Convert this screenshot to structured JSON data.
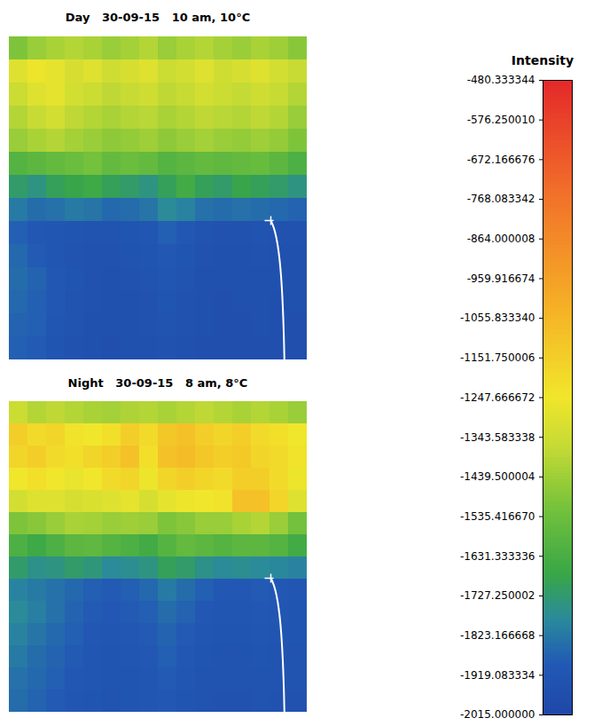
{
  "chart_data": {
    "type": "heatmap",
    "tick_labels": false,
    "panels": [
      {
        "title": "Day   30-09-15   10 am, 10°C",
        "cells": [
          [
            -1500,
            -1450,
            -1420,
            -1400,
            -1420,
            -1450,
            -1430,
            -1400,
            -1450,
            -1420,
            -1400,
            -1430,
            -1450,
            -1420,
            -1440,
            -1480
          ],
          [
            -1300,
            -1260,
            -1280,
            -1320,
            -1300,
            -1340,
            -1320,
            -1300,
            -1350,
            -1330,
            -1300,
            -1340,
            -1320,
            -1300,
            -1330,
            -1360
          ],
          [
            -1350,
            -1300,
            -1280,
            -1330,
            -1350,
            -1380,
            -1360,
            -1340,
            -1380,
            -1360,
            -1330,
            -1350,
            -1370,
            -1340,
            -1360,
            -1400
          ],
          [
            -1400,
            -1360,
            -1330,
            -1380,
            -1400,
            -1420,
            -1400,
            -1390,
            -1420,
            -1400,
            -1380,
            -1390,
            -1400,
            -1380,
            -1400,
            -1450
          ],
          [
            -1450,
            -1420,
            -1400,
            -1430,
            -1450,
            -1470,
            -1460,
            -1440,
            -1470,
            -1450,
            -1430,
            -1450,
            -1460,
            -1440,
            -1460,
            -1500
          ],
          [
            -1600,
            -1580,
            -1560,
            -1540,
            -1520,
            -1560,
            -1540,
            -1560,
            -1600,
            -1580,
            -1560,
            -1570,
            -1560,
            -1550,
            -1580,
            -1620
          ],
          [
            -1720,
            -1750,
            -1700,
            -1680,
            -1660,
            -1700,
            -1720,
            -1750,
            -1700,
            -1650,
            -1700,
            -1720,
            -1680,
            -1700,
            -1720,
            -1750
          ],
          [
            -1820,
            -1850,
            -1840,
            -1820,
            -1830,
            -1860,
            -1850,
            -1830,
            -1780,
            -1800,
            -1840,
            -1850,
            -1840,
            -1850,
            -1860,
            -1870
          ],
          [
            -1880,
            -1900,
            -1910,
            -1920,
            -1930,
            -1930,
            -1920,
            -1910,
            -1880,
            -1900,
            -1930,
            -1940,
            -1940,
            -1930,
            -1940,
            -1940
          ],
          [
            -1860,
            -1890,
            -1910,
            -1930,
            -1940,
            -1940,
            -1930,
            -1920,
            -1900,
            -1920,
            -1940,
            -1950,
            -1950,
            -1940,
            -1950,
            -1950
          ],
          [
            -1850,
            -1870,
            -1900,
            -1920,
            -1940,
            -1950,
            -1940,
            -1930,
            -1910,
            -1930,
            -1950,
            -1950,
            -1950,
            -1950,
            -1950,
            -1950
          ],
          [
            -1860,
            -1880,
            -1900,
            -1930,
            -1940,
            -1950,
            -1950,
            -1940,
            -1920,
            -1940,
            -1950,
            -1960,
            -1950,
            -1950,
            -1960,
            -1950
          ],
          [
            -1870,
            -1880,
            -1910,
            -1930,
            -1950,
            -1950,
            -1950,
            -1940,
            -1930,
            -1940,
            -1950,
            -1960,
            -1960,
            -1950,
            -1960,
            -1960
          ],
          [
            -1880,
            -1890,
            -1920,
            -1940,
            -1950,
            -1960,
            -1950,
            -1950,
            -1940,
            -1950,
            -1960,
            -1960,
            -1960,
            -1960,
            -1960,
            -1960
          ]
        ]
      },
      {
        "title": "Night   30-09-15   8 am, 8°C",
        "cells": [
          [
            -1350,
            -1400,
            -1380,
            -1400,
            -1420,
            -1430,
            -1410,
            -1400,
            -1420,
            -1400,
            -1380,
            -1400,
            -1420,
            -1400,
            -1420,
            -1450
          ],
          [
            -1150,
            -1200,
            -1180,
            -1230,
            -1250,
            -1220,
            -1150,
            -1200,
            -1120,
            -1100,
            -1150,
            -1180,
            -1150,
            -1200,
            -1220,
            -1250
          ],
          [
            -1180,
            -1150,
            -1200,
            -1220,
            -1180,
            -1150,
            -1100,
            -1220,
            -1100,
            -1080,
            -1120,
            -1150,
            -1130,
            -1180,
            -1200,
            -1230
          ],
          [
            -1250,
            -1220,
            -1250,
            -1270,
            -1250,
            -1200,
            -1180,
            -1260,
            -1180,
            -1150,
            -1180,
            -1200,
            -1150,
            -1150,
            -1200,
            -1260
          ],
          [
            -1330,
            -1300,
            -1300,
            -1320,
            -1310,
            -1300,
            -1280,
            -1320,
            -1280,
            -1260,
            -1250,
            -1230,
            -1100,
            -1100,
            -1180,
            -1300
          ],
          [
            -1500,
            -1480,
            -1450,
            -1420,
            -1430,
            -1450,
            -1440,
            -1450,
            -1500,
            -1480,
            -1450,
            -1450,
            -1420,
            -1400,
            -1450,
            -1520
          ],
          [
            -1620,
            -1660,
            -1620,
            -1580,
            -1570,
            -1600,
            -1620,
            -1650,
            -1600,
            -1560,
            -1580,
            -1600,
            -1580,
            -1580,
            -1600,
            -1650
          ],
          [
            -1720,
            -1760,
            -1750,
            -1720,
            -1740,
            -1780,
            -1770,
            -1750,
            -1700,
            -1720,
            -1760,
            -1780,
            -1770,
            -1780,
            -1790,
            -1800
          ],
          [
            -1800,
            -1820,
            -1840,
            -1860,
            -1880,
            -1890,
            -1880,
            -1860,
            -1820,
            -1850,
            -1880,
            -1900,
            -1900,
            -1890,
            -1900,
            -1910
          ],
          [
            -1780,
            -1810,
            -1840,
            -1870,
            -1890,
            -1900,
            -1890,
            -1880,
            -1850,
            -1870,
            -1900,
            -1910,
            -1910,
            -1900,
            -1910,
            -1920
          ],
          [
            -1800,
            -1830,
            -1860,
            -1880,
            -1900,
            -1910,
            -1900,
            -1890,
            -1870,
            -1890,
            -1910,
            -1920,
            -1920,
            -1910,
            -1920,
            -1920
          ],
          [
            -1820,
            -1850,
            -1870,
            -1890,
            -1910,
            -1920,
            -1910,
            -1900,
            -1880,
            -1900,
            -1920,
            -1930,
            -1930,
            -1920,
            -1930,
            -1930
          ],
          [
            -1840,
            -1860,
            -1880,
            -1900,
            -1910,
            -1920,
            -1920,
            -1910,
            -1890,
            -1910,
            -1930,
            -1930,
            -1930,
            -1930,
            -1930,
            -1930
          ],
          [
            -1850,
            -1870,
            -1890,
            -1910,
            -1920,
            -1930,
            -1920,
            -1910,
            -1900,
            -1920,
            -1930,
            -1940,
            -1940,
            -1930,
            -1940,
            -1940
          ]
        ]
      }
    ],
    "colorbar": {
      "label": "Intensity",
      "range": [
        -2015.0,
        -480.333344
      ],
      "ticks": [
        {
          "value": -480.333344,
          "label": "-480.333344"
        },
        {
          "value": -576.25001,
          "label": "-576.250010"
        },
        {
          "value": -672.166676,
          "label": "-672.166676"
        },
        {
          "value": -768.083342,
          "label": "-768.083342"
        },
        {
          "value": -864.000008,
          "label": "-864.000008"
        },
        {
          "value": -959.916674,
          "label": "-959.916674"
        },
        {
          "value": -1055.83334,
          "label": "-1055.833340"
        },
        {
          "value": -1151.750006,
          "label": "-1151.750006"
        },
        {
          "value": -1247.666672,
          "label": "-1247.666672"
        },
        {
          "value": -1343.583338,
          "label": "-1343.583338"
        },
        {
          "value": -1439.500004,
          "label": "-1439.500004"
        },
        {
          "value": -1535.41667,
          "label": "-1535.416670"
        },
        {
          "value": -1631.333336,
          "label": "-1631.333336"
        },
        {
          "value": -1727.250002,
          "label": "-1727.250002"
        },
        {
          "value": -1823.166668,
          "label": "-1823.166668"
        },
        {
          "value": -1919.083334,
          "label": "-1919.083334"
        },
        {
          "value": -2015.0,
          "label": "-2015.000000"
        }
      ]
    }
  }
}
